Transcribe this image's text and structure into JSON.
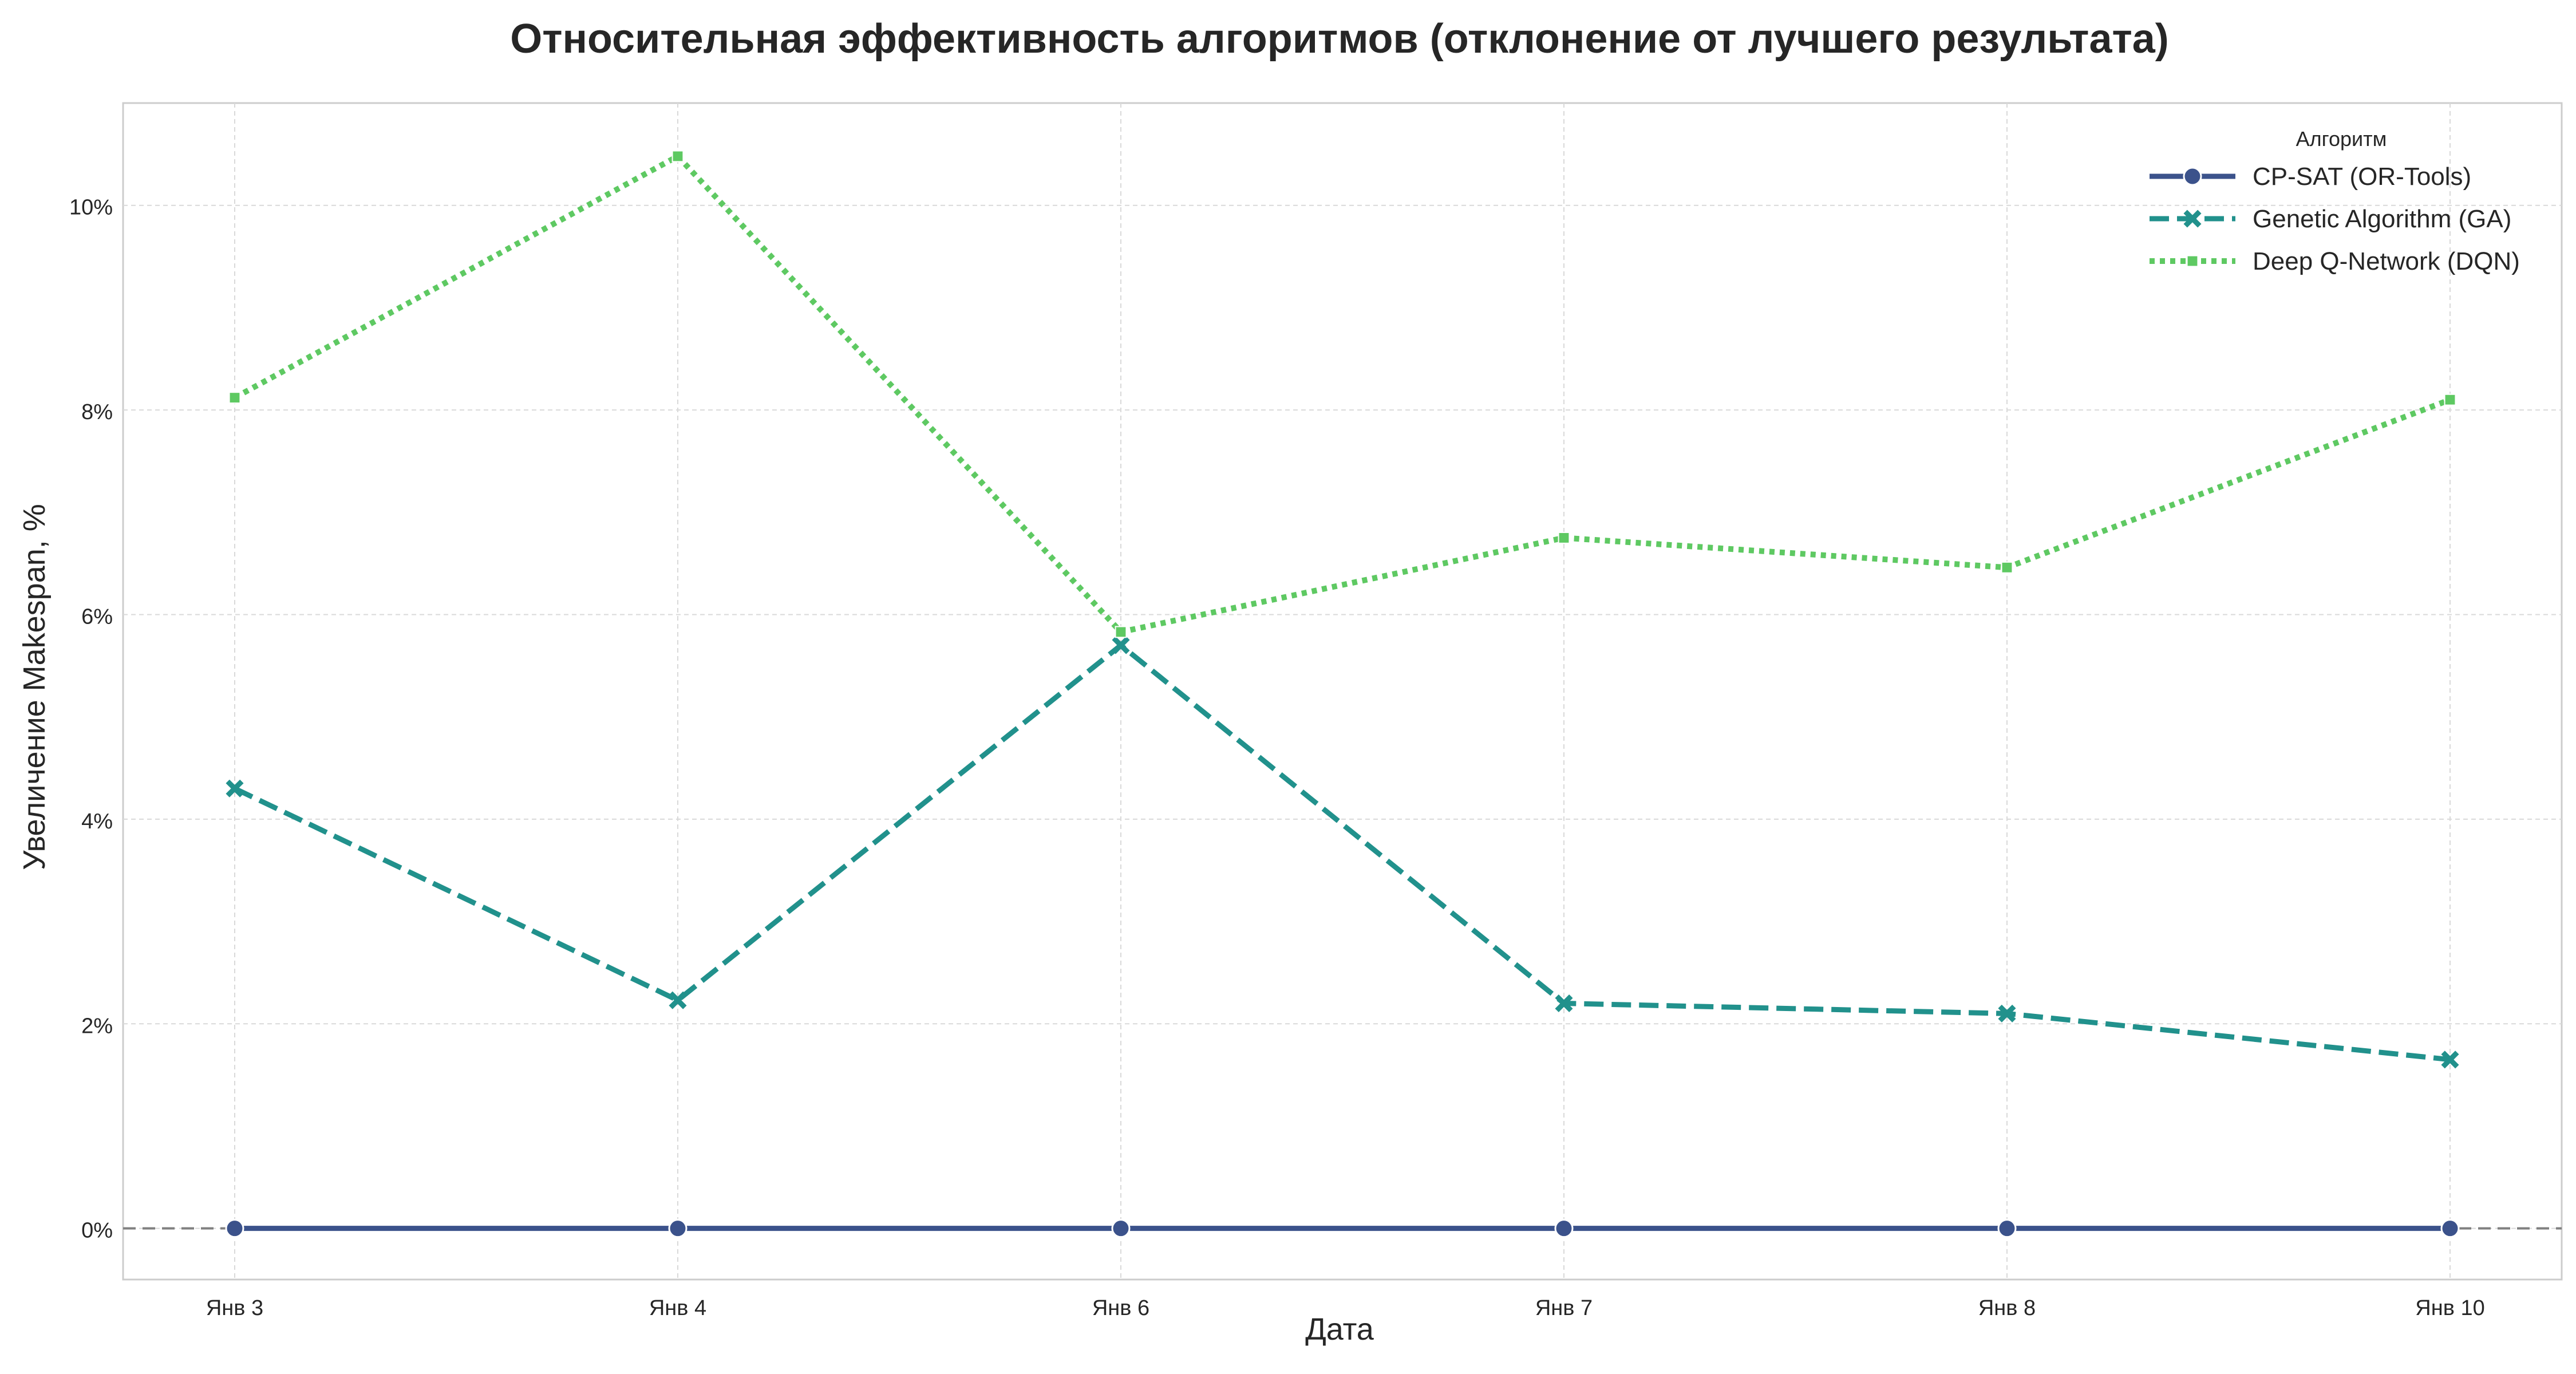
{
  "chart_data": {
    "type": "line",
    "title": "Относительная эффективность алгоритмов (отклонение от лучшего результата)",
    "xlabel": "Дата",
    "ylabel": "Увеличение Makespan, %",
    "categories": [
      "Янв 3",
      "Янв 4",
      "Янв 6",
      "Янв 7",
      "Янв 8",
      "Янв 10"
    ],
    "ylim": [
      -0.5,
      11.0
    ],
    "yticks": [
      0,
      2,
      4,
      6,
      8,
      10
    ],
    "ytick_labels": [
      "0%",
      "2%",
      "4%",
      "6%",
      "8%",
      "10%"
    ],
    "grid": true,
    "legend": {
      "title": "Алгоритм",
      "placement": "top-right"
    },
    "reference_line": {
      "y": 0,
      "style": "dashed",
      "color": "#808080"
    },
    "series": [
      {
        "name": "CP-SAT (OR-Tools)",
        "values": [
          0,
          0,
          0,
          0,
          0,
          0
        ],
        "color": "#3b528b",
        "line_style": "solid",
        "marker": "circle"
      },
      {
        "name": "Genetic Algorithm (GA)",
        "values": [
          4.3,
          2.23,
          5.7,
          2.2,
          2.1,
          1.65
        ],
        "color": "#21918c",
        "line_style": "dashed",
        "marker": "x"
      },
      {
        "name": "Deep Q-Network (DQN)",
        "values": [
          8.12,
          10.48,
          5.83,
          6.75,
          6.46,
          8.1
        ],
        "color": "#5ec962",
        "line_style": "dotted",
        "marker": "square"
      }
    ]
  }
}
